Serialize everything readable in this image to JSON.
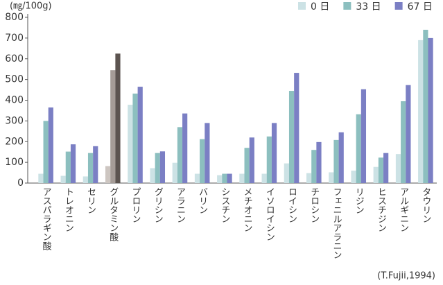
{
  "chart_data": {
    "type": "bar",
    "unit_label": "(㎎/100g)",
    "source": "(T.Fujii,1994)",
    "categories": [
      "アスパラギン酸",
      "トレオニン",
      "セリン",
      "グルタミン酸",
      "プロリン",
      "グリシン",
      "アラニン",
      "バリン",
      "シスチン",
      "メチオニン",
      "イソロイシン",
      "ロイシン",
      "チロシン",
      "フェニルアラニン",
      "リジン",
      "ヒスチジン",
      "アルギニン",
      "タウリン"
    ],
    "series": [
      {
        "name": "0 日",
        "color": "#cce2e5",
        "values": [
          45,
          35,
          32,
          82,
          378,
          72,
          98,
          45,
          38,
          45,
          45,
          95,
          48,
          52,
          60,
          78,
          140,
          690
        ],
        "colors": [
          "#cce2e5",
          "#cce2e5",
          "#cce2e5",
          "#cdc6c1",
          "#cce2e5",
          "#cce2e5",
          "#cce2e5",
          "#cce2e5",
          "#cce2e5",
          "#cce2e5",
          "#cce2e5",
          "#cce2e5",
          "#cce2e5",
          "#cce2e5",
          "#cce2e5",
          "#cce2e5",
          "#cce2e5",
          "#cce2e5"
        ]
      },
      {
        "name": "33 日",
        "color": "#8cbfbf",
        "values": [
          300,
          152,
          145,
          545,
          432,
          145,
          270,
          212,
          45,
          170,
          225,
          445,
          160,
          208,
          332,
          123,
          395,
          740
        ],
        "colors": [
          "#8cbfbf",
          "#8cbfbf",
          "#8cbfbf",
          "#a59c97",
          "#8cbfbf",
          "#8cbfbf",
          "#8cbfbf",
          "#8cbfbf",
          "#8cbfbf",
          "#8cbfbf",
          "#8cbfbf",
          "#8cbfbf",
          "#8cbfbf",
          "#8cbfbf",
          "#8cbfbf",
          "#8cbfbf",
          "#8cbfbf",
          "#8cbfbf"
        ]
      },
      {
        "name": "67 日",
        "color": "#7b7fc4",
        "values": [
          365,
          187,
          178,
          625,
          465,
          153,
          336,
          290,
          45,
          220,
          290,
          532,
          198,
          245,
          453,
          145,
          473,
          700
        ],
        "colors": [
          "#7b7fc4",
          "#7b7fc4",
          "#7b7fc4",
          "#5c5450",
          "#7b7fc4",
          "#7b7fc4",
          "#7b7fc4",
          "#7b7fc4",
          "#7b7fc4",
          "#7b7fc4",
          "#7b7fc4",
          "#7b7fc4",
          "#7b7fc4",
          "#7b7fc4",
          "#7b7fc4",
          "#7b7fc4",
          "#7b7fc4",
          "#7b7fc4"
        ]
      }
    ],
    "ylim": [
      0,
      800
    ],
    "yticks": [
      0,
      100,
      200,
      300,
      400,
      500,
      600,
      700,
      800
    ],
    "grid": false
  }
}
